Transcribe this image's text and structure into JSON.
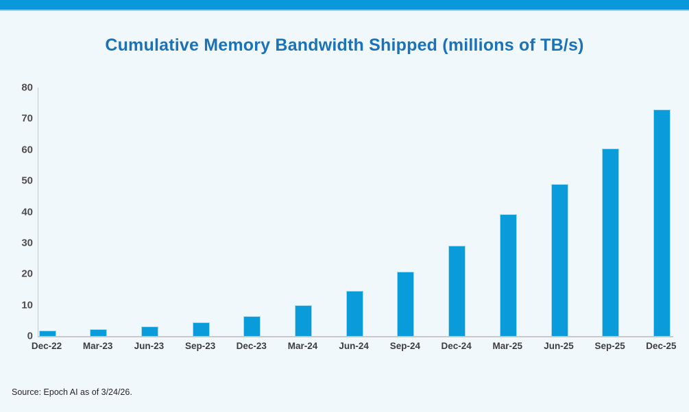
{
  "page": {
    "background_color": "#f0f8fc"
  },
  "banner": {
    "color": "#0999da",
    "edge_color": "#8ed3f2"
  },
  "chart_data": {
    "type": "bar",
    "title": "Cumulative Memory Bandwidth Shipped (millions of TB/s)",
    "title_color": "#1b72b8",
    "categories": [
      "Dec-22",
      "Mar-23",
      "Jun-23",
      "Sep-23",
      "Dec-23",
      "Mar-24",
      "Jun-24",
      "Sep-24",
      "Dec-24",
      "Mar-25",
      "Jun-25",
      "Sep-25",
      "Dec-25"
    ],
    "values": [
      1.7,
      2.2,
      3.0,
      4.4,
      6.4,
      10.0,
      14.6,
      20.7,
      29.2,
      39.2,
      49.0,
      60.4,
      72.9
    ],
    "xlabel": "",
    "ylabel": "",
    "ylim": [
      0,
      80
    ],
    "ytick_step": 10,
    "yticks": [
      "0",
      "10",
      "20",
      "30",
      "40",
      "50",
      "60",
      "70",
      "80"
    ],
    "bar_color": "#0a9bdb",
    "axis_line_color": "#c9c9c9",
    "grid": false,
    "legend": "none"
  },
  "source": {
    "text": "Source: Epoch AI as of 3/24/26."
  }
}
